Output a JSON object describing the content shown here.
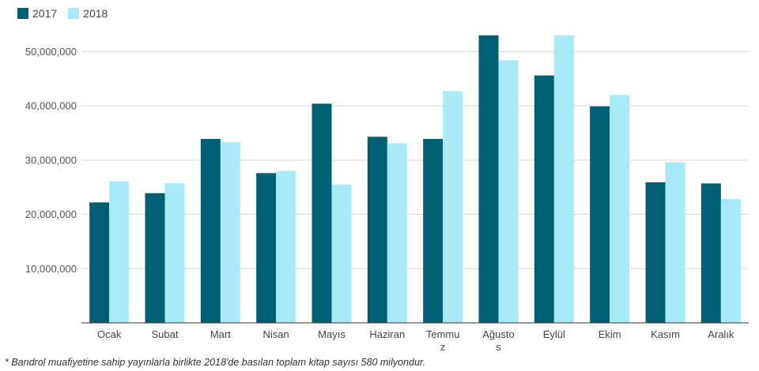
{
  "chart_data": {
    "type": "bar",
    "categories": [
      "Ocak",
      "Subat",
      "Mart",
      "Nisan",
      "Mayıs",
      "Haziran",
      "Temmuz",
      "Ağustos",
      "Eylül",
      "Ekim",
      "Kasım",
      "Aralık"
    ],
    "category_display": [
      [
        "Ocak"
      ],
      [
        "Subat"
      ],
      [
        "Mart"
      ],
      [
        "Nisan"
      ],
      [
        "Mayıs"
      ],
      [
        "Haziran"
      ],
      [
        "Temmu",
        "z"
      ],
      [
        "Ağusto",
        "s"
      ],
      [
        "Eylül"
      ],
      [
        "Ekim"
      ],
      [
        "Kasım"
      ],
      [
        "Aralık"
      ]
    ],
    "series": [
      {
        "name": "2017",
        "color": "#005f73",
        "values": [
          22200000,
          23900000,
          33900000,
          27600000,
          40400000,
          34300000,
          33900000,
          53000000,
          45600000,
          39900000,
          25900000,
          25700000
        ]
      },
      {
        "name": "2018",
        "color": "#a8eaf7",
        "values": [
          26100000,
          25700000,
          33300000,
          28000000,
          25500000,
          33100000,
          42700000,
          48400000,
          53000000,
          42000000,
          29600000,
          22800000
        ]
      }
    ],
    "y_ticks": [
      "10,000,000",
      "20,000,000",
      "30,000,000",
      "40,000,000",
      "50,000,000"
    ],
    "ylim": [
      0,
      55000000
    ],
    "grid": true,
    "legend_position": "top-left",
    "title": "",
    "xlabel": "",
    "ylabel": ""
  },
  "footnote": "* Bandrol muafiyetine sahip yayınlarla birlikte 2018'de basılan toplam kitap sayısı 580 milyondur."
}
